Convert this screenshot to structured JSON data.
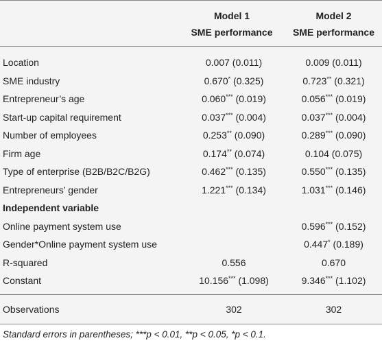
{
  "table": {
    "columns": [
      {
        "model": "Model 1",
        "outcome": "SME performance"
      },
      {
        "model": "Model 2",
        "outcome": "SME performance"
      }
    ],
    "rows": [
      {
        "label": "Location",
        "cells": [
          {
            "value": "0.007",
            "se": "(0.011)"
          },
          {
            "value": "0.009",
            "se": "(0.011)"
          }
        ]
      },
      {
        "label": "SME industry",
        "cells": [
          {
            "value": "0.670",
            "stars": "*",
            "se": "(0.325)"
          },
          {
            "value": "0.723",
            "stars": "**",
            "se": "(0.321)"
          }
        ]
      },
      {
        "label": "Entrepreneur’s age",
        "cells": [
          {
            "value": "0.060",
            "stars": "***",
            "se": "(0.019)"
          },
          {
            "value": "0.056",
            "stars": "***",
            "se": "(0.019)"
          }
        ]
      },
      {
        "label": "Start-up capital requirement",
        "cells": [
          {
            "value": "0.037",
            "stars": "***",
            "se": "(0.004)"
          },
          {
            "value": "0.037",
            "stars": "***",
            "se": "(0.004)"
          }
        ]
      },
      {
        "label": "Number of employees",
        "cells": [
          {
            "value": "0.253",
            "stars": "**",
            "se": "(0.090)"
          },
          {
            "value": "0.289",
            "stars": "***",
            "se": "(0.090)"
          }
        ]
      },
      {
        "label": "Firm age",
        "cells": [
          {
            "value": "0.174",
            "stars": "**",
            "se": "(0.074)"
          },
          {
            "value": "0.104",
            "se": "(0.075)"
          }
        ]
      },
      {
        "label": "Type of enterprise (B2B/B2C/B2G)",
        "cells": [
          {
            "value": "0.462",
            "stars": "***",
            "se": "(0.135)"
          },
          {
            "value": "0.550",
            "stars": "***",
            "se": "(0.135)"
          }
        ]
      },
      {
        "label": "Entrepreneurs’ gender",
        "cells": [
          {
            "value": "1.221",
            "stars": "***",
            "se": "(0.134)"
          },
          {
            "value": "1.031",
            "stars": "***",
            "se": "(0.146)"
          }
        ]
      },
      {
        "label": "Independent variable",
        "section": true,
        "cells": [
          null,
          null
        ]
      },
      {
        "label": "Online payment system use",
        "cells": [
          null,
          {
            "value": "0.596",
            "stars": "***",
            "se": "(0.152)"
          }
        ]
      },
      {
        "label": "Gender*Online payment system use",
        "cells": [
          null,
          {
            "value": "0.447",
            "stars": "*",
            "se": "(0.189)"
          }
        ]
      },
      {
        "label": "R-squared",
        "cells": [
          {
            "value": "0.556"
          },
          {
            "value": "0.670"
          }
        ]
      },
      {
        "label": "Constant",
        "cells": [
          {
            "value": "10.156",
            "stars": "***",
            "se": "(1.098)"
          },
          {
            "value": "9.346",
            "stars": "***",
            "se": "(1.102)"
          }
        ]
      }
    ],
    "footer_row": {
      "label": "Observations",
      "cells": [
        {
          "value": "302"
        },
        {
          "value": "302"
        }
      ]
    },
    "note": "Standard errors in parentheses; ***p < 0.01, **p < 0.05, *p < 0.1."
  }
}
